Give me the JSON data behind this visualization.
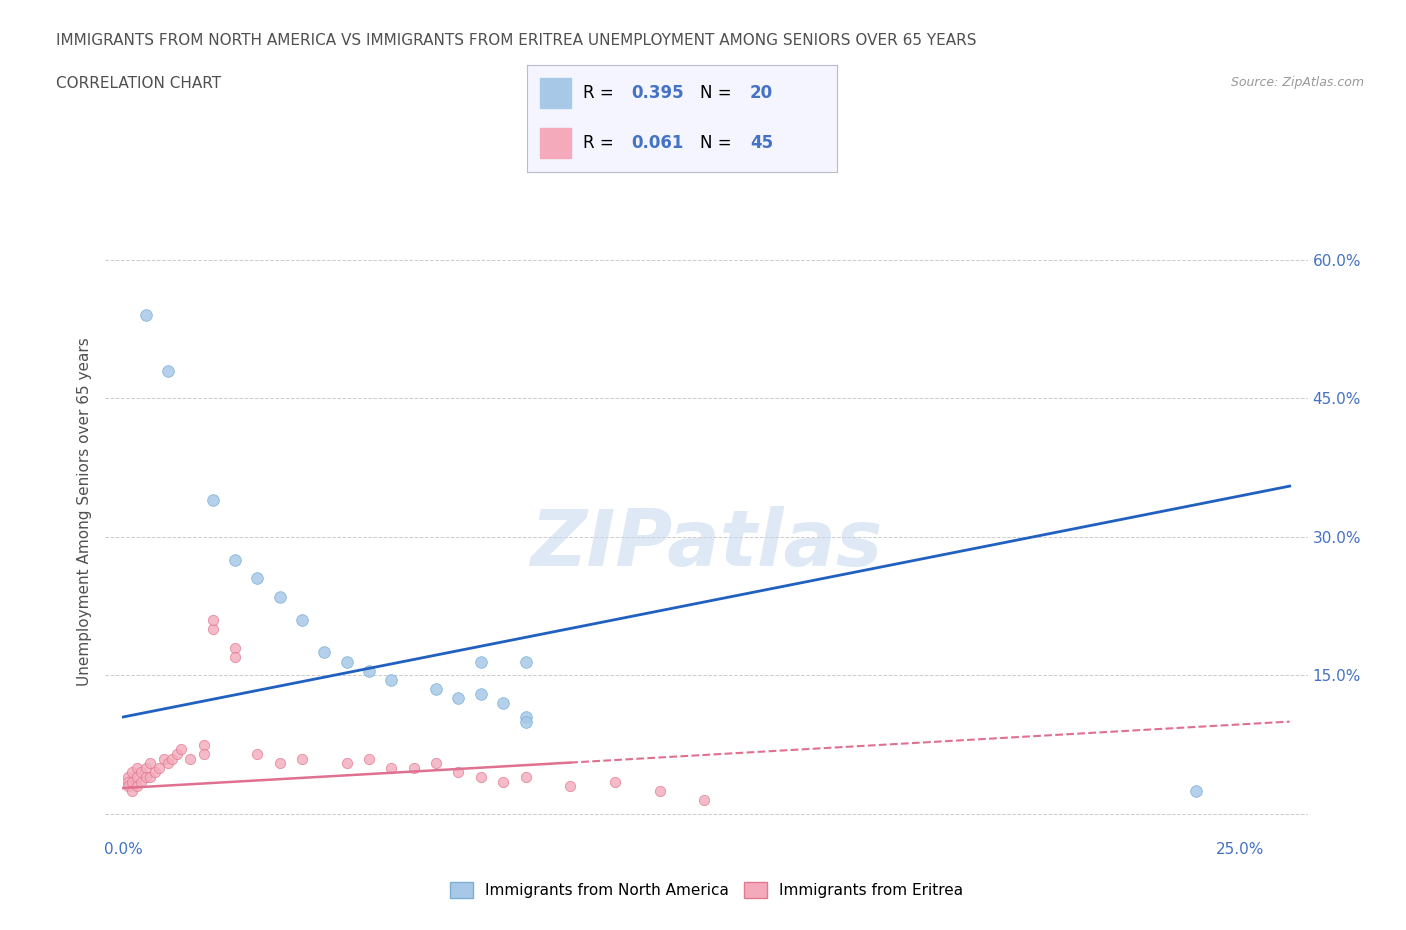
{
  "title_line1": "IMMIGRANTS FROM NORTH AMERICA VS IMMIGRANTS FROM ERITREA UNEMPLOYMENT AMONG SENIORS OVER 65 YEARS",
  "title_line2": "CORRELATION CHART",
  "source_text": "Source: ZipAtlas.com",
  "ylabel": "Unemployment Among Seniors over 65 years",
  "xlim": [
    -0.004,
    0.265
  ],
  "ylim": [
    -0.025,
    0.68
  ],
  "watermark": "ZIPatlas",
  "north_america_color": "#a8c8e8",
  "north_america_edge": "#7aafd4",
  "eritrea_color": "#f4aabb",
  "eritrea_edge": "#e07890",
  "trend_blue": "#2060c0",
  "trend_pink": "#e07090",
  "background_color": "#ffffff",
  "grid_color": "#cccccc",
  "title_color": "#505050",
  "axis_label_color": "#505050",
  "tick_label_color_blue": "#4472c4",
  "north_america_x": [
    0.005,
    0.01,
    0.02,
    0.025,
    0.03,
    0.035,
    0.04,
    0.045,
    0.05,
    0.055,
    0.06,
    0.07,
    0.075,
    0.08,
    0.085,
    0.09,
    0.09,
    0.09,
    0.24,
    0.08
  ],
  "north_america_y": [
    0.54,
    0.48,
    0.34,
    0.275,
    0.255,
    0.235,
    0.21,
    0.175,
    0.165,
    0.155,
    0.145,
    0.135,
    0.125,
    0.13,
    0.12,
    0.105,
    0.1,
    0.165,
    0.025,
    0.165
  ],
  "eritrea_x": [
    0.001,
    0.001,
    0.001,
    0.002,
    0.002,
    0.002,
    0.003,
    0.003,
    0.003,
    0.004,
    0.004,
    0.005,
    0.005,
    0.006,
    0.006,
    0.007,
    0.008,
    0.009,
    0.01,
    0.011,
    0.012,
    0.013,
    0.015,
    0.018,
    0.018,
    0.02,
    0.025,
    0.03,
    0.035,
    0.04,
    0.05,
    0.055,
    0.06,
    0.065,
    0.07,
    0.075,
    0.08,
    0.085,
    0.09,
    0.1,
    0.11,
    0.12,
    0.13,
    0.025,
    0.02
  ],
  "eritrea_y": [
    0.04,
    0.035,
    0.03,
    0.045,
    0.035,
    0.025,
    0.05,
    0.04,
    0.03,
    0.045,
    0.035,
    0.05,
    0.04,
    0.055,
    0.04,
    0.045,
    0.05,
    0.06,
    0.055,
    0.06,
    0.065,
    0.07,
    0.06,
    0.075,
    0.065,
    0.2,
    0.18,
    0.065,
    0.055,
    0.06,
    0.055,
    0.06,
    0.05,
    0.05,
    0.055,
    0.045,
    0.04,
    0.035,
    0.04,
    0.03,
    0.035,
    0.025,
    0.015,
    0.17,
    0.21
  ],
  "trend_blue_x0": 0.0,
  "trend_blue_x1": 0.261,
  "trend_blue_y0": 0.105,
  "trend_blue_y1": 0.355,
  "trend_pink_x0": 0.0,
  "trend_pink_x1": 0.261,
  "trend_pink_y0": 0.028,
  "trend_pink_y1": 0.1,
  "trend_solid_end": 0.1,
  "R_north": "0.395",
  "N_north": "20",
  "R_eritrea": "0.061",
  "N_eritrea": "45",
  "legend_label_north": "Immigrants from North America",
  "legend_label_eritrea": "Immigrants from Eritrea"
}
